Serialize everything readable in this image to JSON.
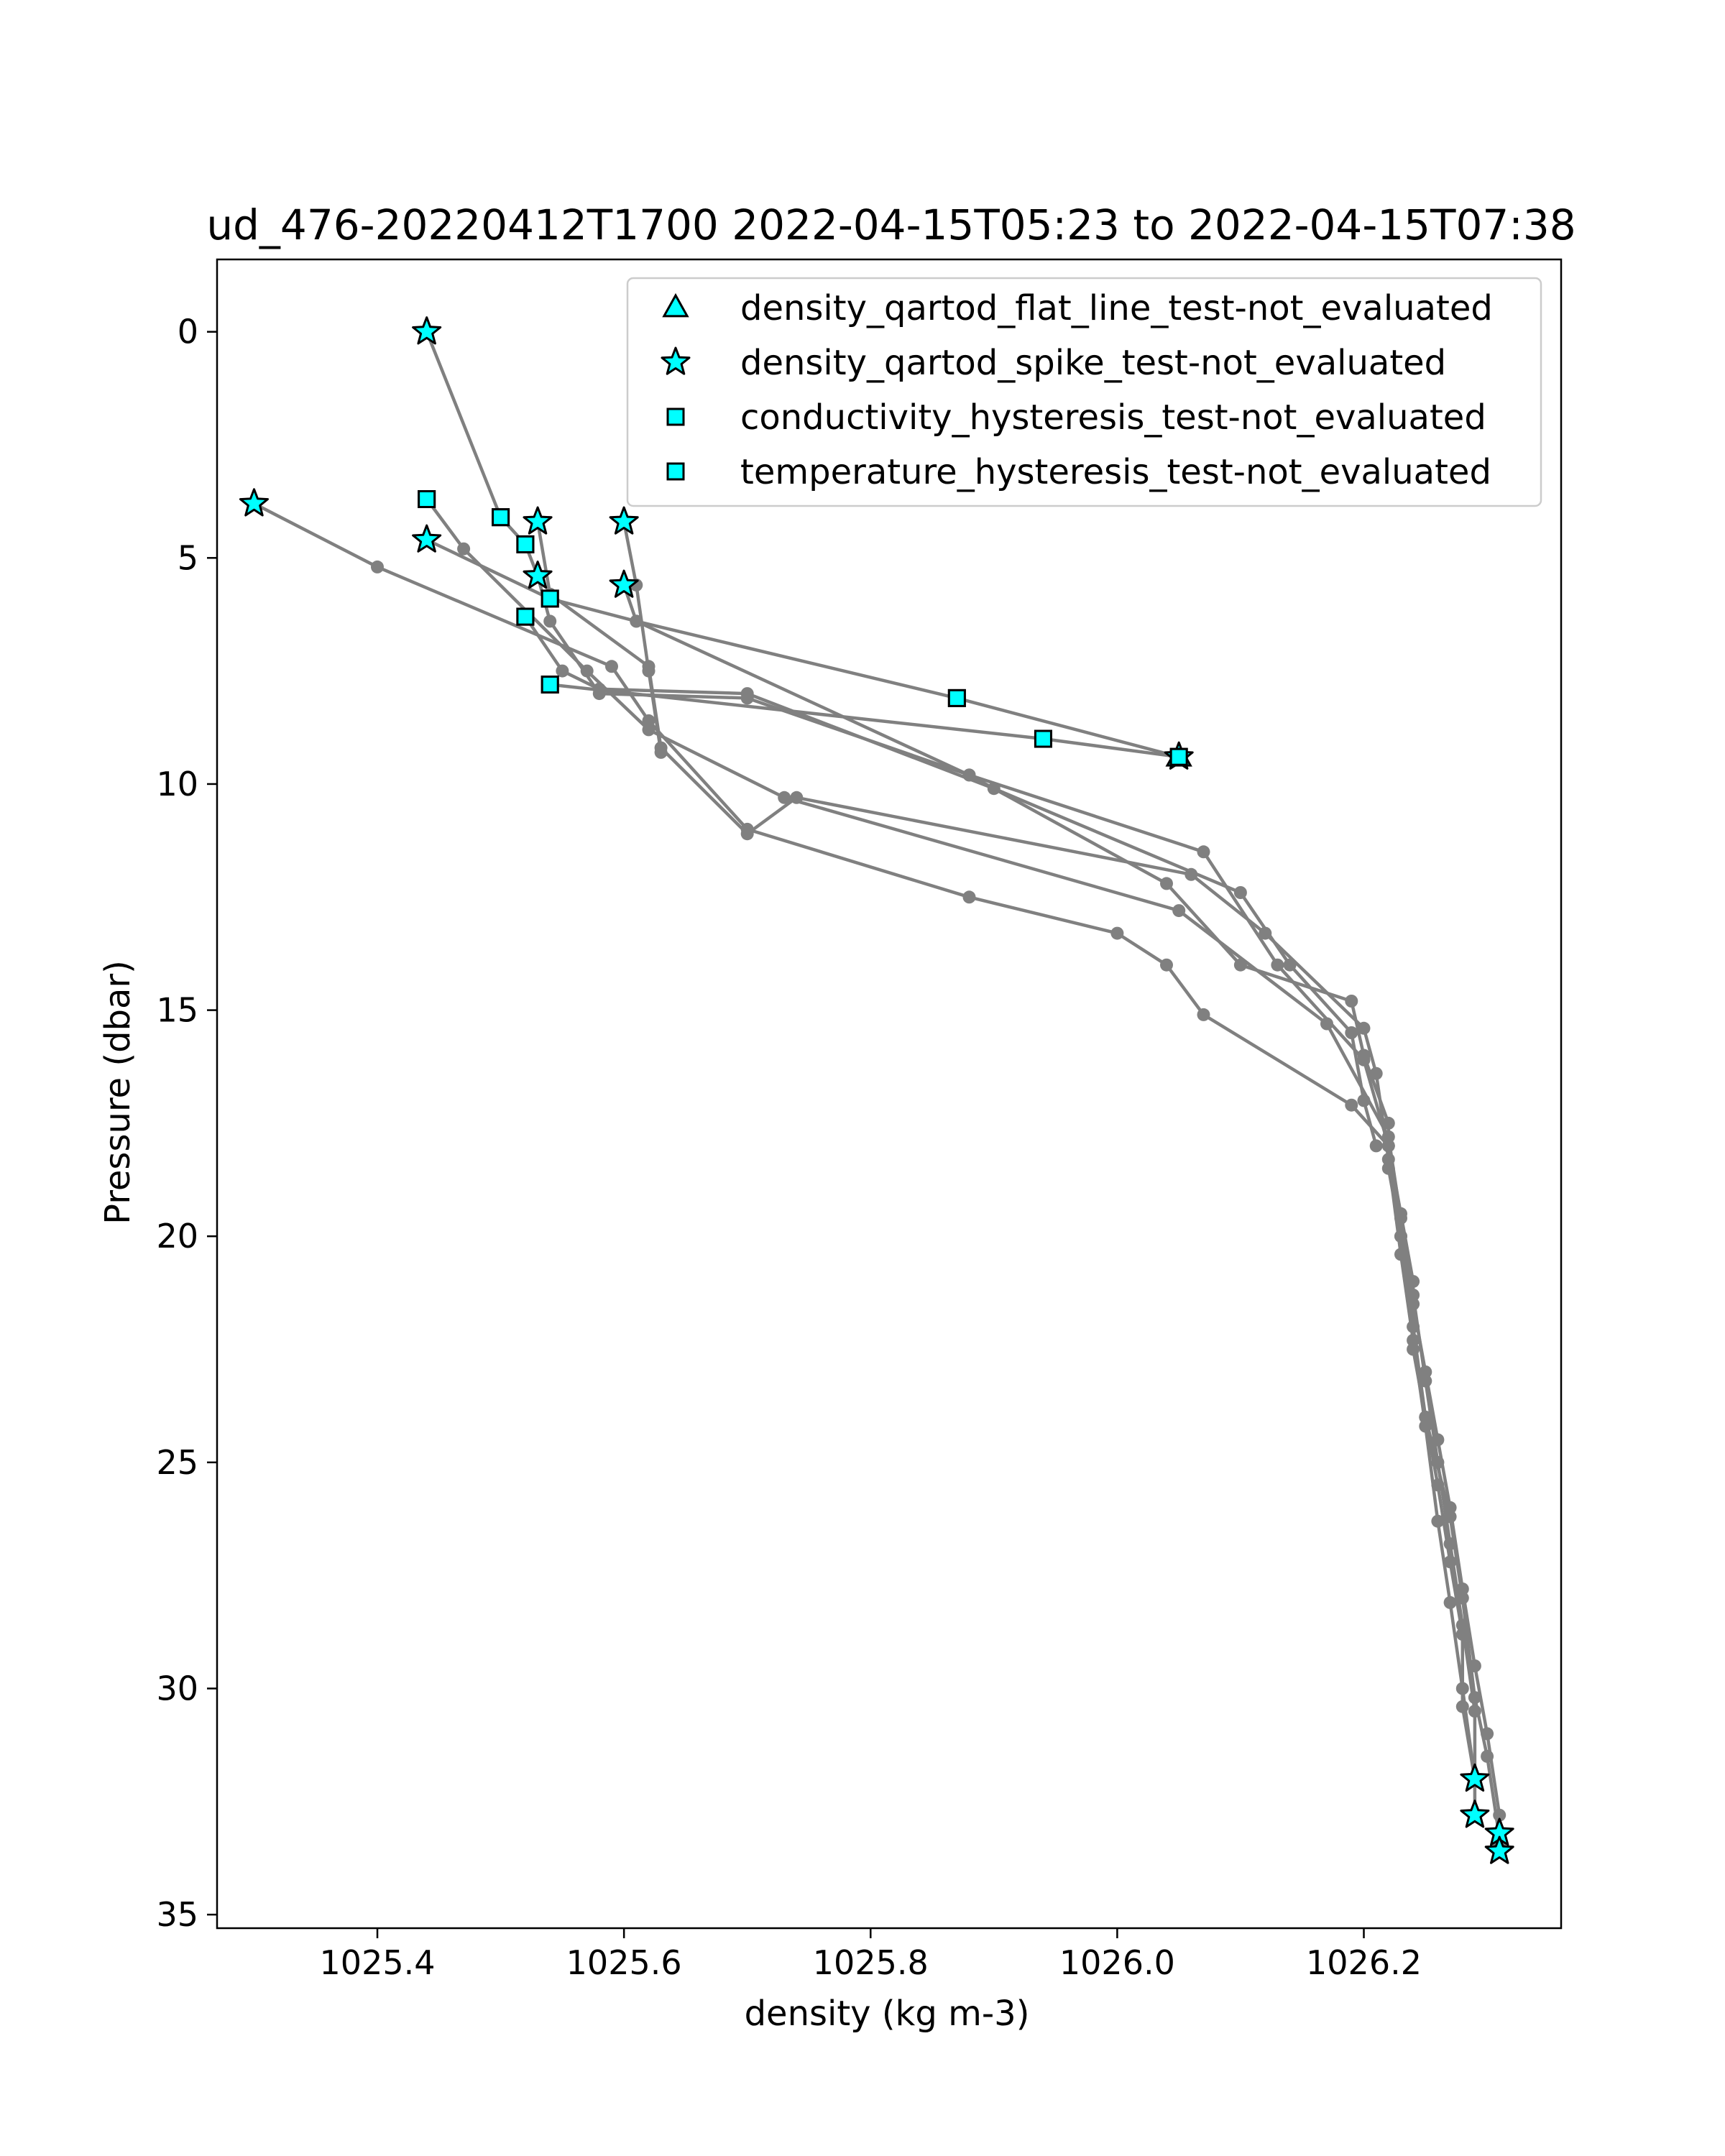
{
  "chart_data": {
    "type": "line",
    "title": "ud_476-20220412T1700 2022-04-15T05:23 to 2022-04-15T07:38",
    "xlabel": "density (kg m-3)",
    "ylabel": "Pressure (dbar)",
    "xlim": [
      1025.27,
      1026.36
    ],
    "ylim": [
      35.3,
      -1.6
    ],
    "y_inverted": true,
    "x_ticks": [
      "1025.4",
      "1025.6",
      "1025.8",
      "1026.0",
      "1026.2"
    ],
    "x_tick_values": [
      1025.4,
      1025.6,
      1025.8,
      1026.0,
      1026.2
    ],
    "y_ticks": [
      "0",
      "5",
      "10",
      "15",
      "20",
      "25",
      "30",
      "35"
    ],
    "y_tick_values": [
      0,
      5,
      10,
      15,
      20,
      25,
      30,
      35
    ],
    "grid": false,
    "legend_position": "upper-right",
    "profile_color": "#808080",
    "marker_fill": "#00FFFF",
    "marker_edge": "#000000",
    "profiles": [
      [
        [
          1025.44,
          0.0
        ],
        [
          1025.5,
          4.1
        ],
        [
          1025.52,
          4.7
        ],
        [
          1025.53,
          5.4
        ],
        [
          1025.54,
          6.4
        ],
        [
          1025.58,
          8.0
        ],
        [
          1025.7,
          8.1
        ],
        [
          1025.88,
          9.8
        ],
        [
          1026.04,
          12.2
        ],
        [
          1026.1,
          14.0
        ],
        [
          1026.19,
          14.8
        ],
        [
          1026.2,
          16.0
        ],
        [
          1026.22,
          17.5
        ],
        [
          1026.22,
          18.5
        ],
        [
          1026.23,
          20.0
        ],
        [
          1026.24,
          21.5
        ],
        [
          1026.25,
          23.0
        ],
        [
          1026.26,
          24.5
        ],
        [
          1026.27,
          26.0
        ],
        [
          1026.28,
          27.8
        ],
        [
          1026.29,
          29.5
        ],
        [
          1026.3,
          31.0
        ],
        [
          1026.31,
          32.8
        ],
        [
          1026.31,
          33.5
        ]
      ],
      [
        [
          1025.3,
          3.8
        ],
        [
          1025.4,
          5.2
        ],
        [
          1025.59,
          7.4
        ],
        [
          1025.62,
          8.6
        ],
        [
          1025.7,
          11.0
        ],
        [
          1025.88,
          12.5
        ],
        [
          1026.0,
          13.3
        ],
        [
          1026.04,
          14.0
        ],
        [
          1026.07,
          15.1
        ],
        [
          1026.19,
          17.1
        ],
        [
          1026.22,
          18.0
        ],
        [
          1026.23,
          19.5
        ],
        [
          1026.24,
          21.0
        ],
        [
          1026.24,
          22.5
        ],
        [
          1026.25,
          24.0
        ],
        [
          1026.26,
          25.5
        ],
        [
          1026.27,
          27.2
        ],
        [
          1026.28,
          28.8
        ],
        [
          1026.28,
          30.4
        ],
        [
          1026.29,
          32.0
        ]
      ],
      [
        [
          1025.44,
          3.7
        ],
        [
          1025.47,
          4.8
        ],
        [
          1025.57,
          7.5
        ],
        [
          1025.62,
          8.8
        ],
        [
          1025.73,
          10.3
        ],
        [
          1026.05,
          12.8
        ],
        [
          1026.17,
          15.3
        ],
        [
          1026.22,
          17.8
        ],
        [
          1026.23,
          19.6
        ],
        [
          1026.24,
          21.3
        ],
        [
          1026.25,
          23.2
        ],
        [
          1026.26,
          25.0
        ],
        [
          1026.27,
          26.8
        ],
        [
          1026.28,
          28.6
        ],
        [
          1026.29,
          30.5
        ],
        [
          1026.29,
          32.8
        ]
      ],
      [
        [
          1025.44,
          4.6
        ],
        [
          1025.54,
          5.9
        ],
        [
          1025.61,
          6.4
        ],
        [
          1025.88,
          9.8
        ],
        [
          1026.07,
          11.5
        ],
        [
          1026.13,
          14.0
        ],
        [
          1026.2,
          16.1
        ],
        [
          1026.22,
          18.0
        ],
        [
          1026.23,
          20.0
        ],
        [
          1026.24,
          22.0
        ],
        [
          1026.25,
          24.0
        ],
        [
          1026.27,
          26.2
        ],
        [
          1026.28,
          28.0
        ],
        [
          1026.29,
          30.2
        ],
        [
          1026.3,
          31.5
        ],
        [
          1026.31,
          33.3
        ]
      ],
      [
        [
          1025.53,
          4.2
        ],
        [
          1025.54,
          5.8
        ],
        [
          1025.62,
          7.4
        ],
        [
          1025.63,
          9.2
        ],
        [
          1025.7,
          11.1
        ],
        [
          1025.74,
          10.3
        ],
        [
          1026.06,
          12.0
        ],
        [
          1026.12,
          13.3
        ],
        [
          1026.2,
          15.4
        ],
        [
          1026.21,
          16.4
        ],
        [
          1026.22,
          18.3
        ],
        [
          1026.23,
          20.4
        ],
        [
          1026.24,
          22.3
        ],
        [
          1026.25,
          24.2
        ],
        [
          1026.26,
          26.3
        ],
        [
          1026.27,
          28.1
        ],
        [
          1026.28,
          30.0
        ],
        [
          1026.29,
          32.0
        ]
      ],
      [
        [
          1025.52,
          6.3
        ],
        [
          1025.55,
          7.5
        ],
        [
          1025.58,
          7.9
        ],
        [
          1025.7,
          8.0
        ],
        [
          1025.9,
          10.1
        ],
        [
          1026.1,
          12.4
        ],
        [
          1026.14,
          14.0
        ],
        [
          1026.19,
          15.5
        ],
        [
          1026.2,
          17.0
        ],
        [
          1026.21,
          18.0
        ]
      ],
      [
        [
          1025.6,
          5.6
        ],
        [
          1025.61,
          6.4
        ],
        [
          1025.87,
          8.1
        ],
        [
          1026.05,
          9.4
        ]
      ],
      [
        [
          1025.54,
          7.8
        ],
        [
          1025.94,
          9.0
        ],
        [
          1026.05,
          9.4
        ]
      ],
      [
        [
          1025.6,
          4.2
        ],
        [
          1025.61,
          5.6
        ],
        [
          1025.62,
          7.5
        ],
        [
          1025.63,
          9.3
        ]
      ]
    ],
    "series": [
      {
        "name": "density_qartod_flat_line_test-not_evaluated",
        "marker": "triangle",
        "points": [
          [
            1026.05,
            9.4
          ]
        ]
      },
      {
        "name": "density_qartod_spike_test-not_evaluated",
        "marker": "star",
        "points": [
          [
            1025.44,
            0.0
          ],
          [
            1025.3,
            3.8
          ],
          [
            1025.44,
            4.6
          ],
          [
            1025.53,
            4.2
          ],
          [
            1025.6,
            4.2
          ],
          [
            1025.53,
            5.4
          ],
          [
            1025.6,
            5.6
          ],
          [
            1026.05,
            9.4
          ],
          [
            1026.29,
            32.0
          ],
          [
            1026.29,
            32.8
          ],
          [
            1026.31,
            33.2
          ],
          [
            1026.31,
            33.6
          ]
        ]
      },
      {
        "name": "conductivity_hysteresis_test-not_evaluated",
        "marker": "square",
        "points": [
          [
            1025.44,
            3.7
          ],
          [
            1025.5,
            4.1
          ],
          [
            1025.52,
            4.7
          ],
          [
            1025.54,
            5.9
          ],
          [
            1025.52,
            6.3
          ],
          [
            1025.54,
            7.8
          ],
          [
            1025.87,
            8.1
          ],
          [
            1025.94,
            9.0
          ],
          [
            1026.05,
            9.4
          ]
        ]
      },
      {
        "name": "temperature_hysteresis_test-not_evaluated",
        "marker": "square",
        "points": [
          [
            1025.44,
            3.7
          ],
          [
            1025.5,
            4.1
          ],
          [
            1025.52,
            4.7
          ],
          [
            1025.54,
            5.9
          ],
          [
            1025.52,
            6.3
          ],
          [
            1025.54,
            7.8
          ],
          [
            1025.87,
            8.1
          ],
          [
            1025.94,
            9.0
          ],
          [
            1026.05,
            9.4
          ]
        ]
      }
    ]
  }
}
